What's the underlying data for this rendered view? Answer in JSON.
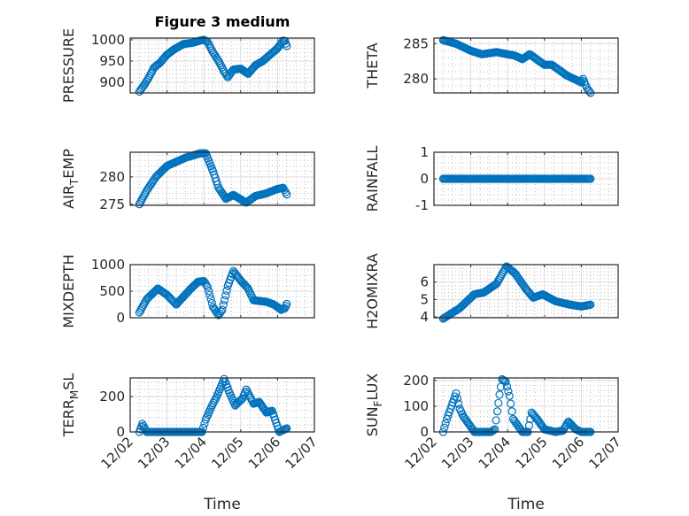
{
  "chart_data": {
    "type": "scatter",
    "title": "Figure 3 medium",
    "xlabel": "Time",
    "x_units": "days since 12/02",
    "xlim": [
      0,
      5
    ],
    "x_tick_labels": [
      "12/02",
      "12/03",
      "12/04",
      "12/05",
      "12/06",
      "12/07"
    ],
    "marker_color": "#0072BD",
    "grid": true,
    "minor_grid": true,
    "subplots": [
      {
        "ylabel": "PRESSURE",
        "ylim": [
          875,
          1004
        ],
        "yticks": [
          900,
          950,
          1000
        ],
        "points": [
          [
            0.25,
            878
          ],
          [
            0.35,
            890
          ],
          [
            0.5,
            910
          ],
          [
            0.65,
            935
          ],
          [
            0.8,
            945
          ],
          [
            1.0,
            965
          ],
          [
            1.2,
            978
          ],
          [
            1.45,
            990
          ],
          [
            1.7,
            993
          ],
          [
            1.9,
            998
          ],
          [
            2.0,
            1000
          ],
          [
            2.1,
            995
          ],
          [
            2.25,
            970
          ],
          [
            2.4,
            950
          ],
          [
            2.55,
            925
          ],
          [
            2.65,
            912
          ],
          [
            2.8,
            930
          ],
          [
            3.0,
            932
          ],
          [
            3.2,
            920
          ],
          [
            3.4,
            940
          ],
          [
            3.6,
            950
          ],
          [
            3.8,
            965
          ],
          [
            4.0,
            980
          ],
          [
            4.15,
            998
          ],
          [
            4.2,
            997
          ],
          [
            4.25,
            985
          ]
        ]
      },
      {
        "ylabel": "THETA",
        "ylim": [
          278,
          285.8
        ],
        "yticks": [
          280,
          285
        ],
        "points": [
          [
            0.25,
            285.5
          ],
          [
            0.6,
            285
          ],
          [
            1.0,
            284
          ],
          [
            1.3,
            283.5
          ],
          [
            1.7,
            283.8
          ],
          [
            2.2,
            283.3
          ],
          [
            2.4,
            282.8
          ],
          [
            2.6,
            283.5
          ],
          [
            3.0,
            282
          ],
          [
            3.2,
            282
          ],
          [
            3.6,
            280.5
          ],
          [
            4.0,
            279.5
          ],
          [
            4.05,
            280
          ],
          [
            4.15,
            278.7
          ],
          [
            4.25,
            278
          ]
        ]
      },
      {
        "ylabel": "AIR_TEMP",
        "ylim": [
          274.8,
          284.5
        ],
        "yticks": [
          275,
          280
        ],
        "points": [
          [
            0.25,
            275
          ],
          [
            0.45,
            277.5
          ],
          [
            0.7,
            280
          ],
          [
            1.0,
            282
          ],
          [
            1.5,
            283.5
          ],
          [
            1.9,
            284.3
          ],
          [
            2.05,
            284.3
          ],
          [
            2.25,
            281
          ],
          [
            2.4,
            278
          ],
          [
            2.6,
            276
          ],
          [
            2.8,
            276.7
          ],
          [
            3.15,
            275.3
          ],
          [
            3.4,
            276.5
          ],
          [
            3.7,
            277
          ],
          [
            4.0,
            277.8
          ],
          [
            4.15,
            278
          ],
          [
            4.25,
            276.8
          ]
        ]
      },
      {
        "ylabel": "RAINFALL",
        "ylim": [
          -1,
          1
        ],
        "yticks": [
          -1,
          0,
          1
        ],
        "points": [
          [
            0.25,
            0
          ],
          [
            4.25,
            0
          ]
        ]
      },
      {
        "ylabel": "MIXDEPTH",
        "ylim": [
          0,
          1000
        ],
        "yticks": [
          0,
          500,
          1000
        ],
        "points": [
          [
            0.25,
            100
          ],
          [
            0.45,
            350
          ],
          [
            0.75,
            550
          ],
          [
            1.0,
            430
          ],
          [
            1.25,
            250
          ],
          [
            1.45,
            400
          ],
          [
            1.65,
            550
          ],
          [
            1.85,
            680
          ],
          [
            2.0,
            690
          ],
          [
            2.1,
            580
          ],
          [
            2.25,
            200
          ],
          [
            2.4,
            50
          ],
          [
            2.5,
            150
          ],
          [
            2.65,
            600
          ],
          [
            2.8,
            880
          ],
          [
            3.0,
            700
          ],
          [
            3.2,
            550
          ],
          [
            3.35,
            330
          ],
          [
            3.7,
            300
          ],
          [
            3.9,
            250
          ],
          [
            4.1,
            150
          ],
          [
            4.2,
            180
          ],
          [
            4.25,
            260
          ]
        ]
      },
      {
        "ylabel": "H2OMIXRA",
        "ylim": [
          3.95,
          7
        ],
        "yticks": [
          4,
          5,
          6
        ],
        "points": [
          [
            0.25,
            3.9
          ],
          [
            0.7,
            4.5
          ],
          [
            1.1,
            5.3
          ],
          [
            1.35,
            5.4
          ],
          [
            1.7,
            5.9
          ],
          [
            1.97,
            6.9
          ],
          [
            2.2,
            6.5
          ],
          [
            2.5,
            5.6
          ],
          [
            2.7,
            5.1
          ],
          [
            2.95,
            5.3
          ],
          [
            3.3,
            4.9
          ],
          [
            3.7,
            4.7
          ],
          [
            4.0,
            4.6
          ],
          [
            4.25,
            4.7
          ]
        ]
      },
      {
        "ylabel": "TERR_MSL",
        "ylim": [
          0,
          306
        ],
        "yticks": [
          0,
          200
        ],
        "points": [
          [
            0.25,
            0
          ],
          [
            0.33,
            45
          ],
          [
            0.45,
            0
          ],
          [
            1.95,
            0
          ],
          [
            2.05,
            70
          ],
          [
            2.2,
            140
          ],
          [
            2.35,
            200
          ],
          [
            2.55,
            300
          ],
          [
            2.7,
            220
          ],
          [
            2.85,
            150
          ],
          [
            3.05,
            190
          ],
          [
            3.15,
            240
          ],
          [
            3.35,
            160
          ],
          [
            3.5,
            170
          ],
          [
            3.7,
            110
          ],
          [
            3.85,
            120
          ],
          [
            4.05,
            0
          ],
          [
            4.25,
            20
          ]
        ]
      },
      {
        "ylabel": "SUN_FLUX",
        "ylim": [
          0,
          210
        ],
        "yticks": [
          0,
          100,
          200
        ],
        "points": [
          [
            0.25,
            0
          ],
          [
            0.35,
            50
          ],
          [
            0.45,
            90
          ],
          [
            0.6,
            150
          ],
          [
            0.7,
            90
          ],
          [
            0.8,
            60
          ],
          [
            1.0,
            20
          ],
          [
            1.1,
            0
          ],
          [
            1.55,
            0
          ],
          [
            1.65,
            10
          ],
          [
            1.72,
            80
          ],
          [
            1.78,
            145
          ],
          [
            1.85,
            205
          ],
          [
            1.95,
            195
          ],
          [
            2.05,
            140
          ],
          [
            2.15,
            50
          ],
          [
            2.4,
            0
          ],
          [
            2.55,
            0
          ],
          [
            2.65,
            75
          ],
          [
            2.8,
            50
          ],
          [
            3.0,
            10
          ],
          [
            3.3,
            0
          ],
          [
            3.5,
            5
          ],
          [
            3.65,
            40
          ],
          [
            3.85,
            10
          ],
          [
            4.0,
            0
          ],
          [
            4.25,
            0
          ]
        ]
      }
    ]
  }
}
